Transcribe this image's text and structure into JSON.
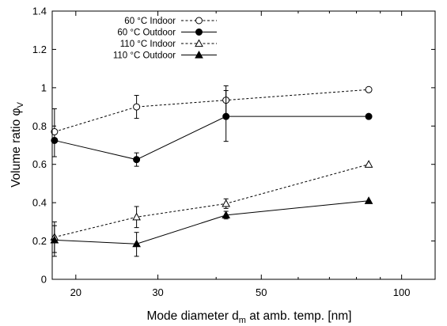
{
  "chart_data": {
    "type": "scatter",
    "title": "",
    "xlabel": "Mode diameter d",
    "xlabel_sub": "m",
    "xlabel_rest": " at amb. temp. [nm]",
    "ylabel": "Volume ratio φ",
    "ylabel_sub": "V",
    "xscale": "log",
    "xlim": [
      17.8,
      118
    ],
    "ylim": [
      0,
      1.4
    ],
    "xticks": [
      20,
      30,
      50,
      100
    ],
    "xtick_labels": [
      "20",
      "30",
      "50",
      "100"
    ],
    "yticks": [
      0,
      0.2,
      0.4,
      0.6,
      0.8,
      1,
      1.2,
      1.4
    ],
    "ytick_labels": [
      "0",
      "0.2",
      "0.4",
      "0.6",
      "0.8",
      "1",
      "1.2",
      "1.4"
    ],
    "grid": false,
    "legend_position": "top-left",
    "x": [
      18,
      27,
      42,
      85
    ],
    "series": [
      {
        "name": "60 °C Indoor",
        "marker": "circle-open",
        "line": "dashed",
        "values": [
          0.77,
          0.9,
          0.935,
          0.99
        ],
        "err_low": [
          0.64,
          0.84,
          0.855,
          null
        ],
        "err_high": [
          0.89,
          0.96,
          1.01,
          null
        ]
      },
      {
        "name": "60 °C Outdoor",
        "marker": "circle-filled",
        "line": "solid",
        "values": [
          0.725,
          0.625,
          0.85,
          0.85
        ],
        "err_low": [
          null,
          0.59,
          0.72,
          null
        ],
        "err_high": [
          null,
          0.66,
          0.985,
          null
        ]
      },
      {
        "name": "110 °C Indoor",
        "marker": "triangle-open",
        "line": "dashed",
        "values": [
          0.22,
          0.325,
          0.395,
          0.6
        ],
        "err_low": [
          0.12,
          0.27,
          0.37,
          null
        ],
        "err_high": [
          0.3,
          0.38,
          0.42,
          null
        ]
      },
      {
        "name": "110 °C Outdoor",
        "marker": "triangle-filled",
        "line": "solid",
        "values": [
          0.205,
          0.185,
          0.335,
          0.41
        ],
        "err_low": [
          0.14,
          0.12,
          0.315,
          null
        ],
        "err_high": [
          0.28,
          0.245,
          0.355,
          null
        ]
      }
    ]
  }
}
